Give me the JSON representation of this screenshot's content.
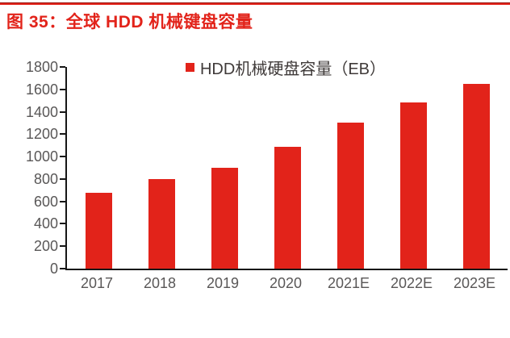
{
  "figure": {
    "title": "图 35：全球 HDD 机械键盘容量"
  },
  "colors": {
    "accent_red": "#e2231a",
    "axis_line": "#161616",
    "tick_label_gray": "#595757",
    "legend_text_gray": "#3f3a39"
  },
  "chart_data": {
    "type": "bar",
    "title": "图 35：全球 HDD 机械键盘容量",
    "legend": "HDD机械硬盘容量（EB）",
    "legend_position": "top-center",
    "categories": [
      "2017",
      "2018",
      "2019",
      "2020",
      "2021E",
      "2022E",
      "2023E"
    ],
    "values": [
      680,
      800,
      900,
      1090,
      1300,
      1480,
      1650
    ],
    "xlabel": "",
    "ylabel": "",
    "ylim": [
      0,
      1800
    ],
    "yticks": [
      1800,
      1600,
      1400,
      1200,
      1000,
      800,
      600,
      400,
      200,
      0
    ],
    "grid": false,
    "bar_color": "#e2231a"
  }
}
